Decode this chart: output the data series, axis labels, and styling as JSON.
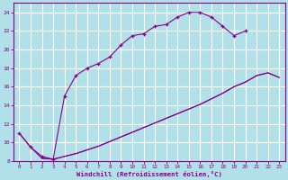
{
  "xlabel": "Windchill (Refroidissement éolien,°C)",
  "bg_color": "#b2e0e8",
  "grid_color": "#ffffff",
  "line_color": "#880088",
  "ylim": [
    8,
    25
  ],
  "xlim": [
    -0.5,
    23.5
  ],
  "yticks": [
    8,
    10,
    12,
    14,
    16,
    18,
    20,
    22,
    24
  ],
  "xticks": [
    0,
    1,
    2,
    3,
    4,
    5,
    6,
    7,
    8,
    9,
    10,
    11,
    12,
    13,
    14,
    15,
    16,
    17,
    18,
    19,
    20,
    21,
    22,
    23
  ],
  "curve1_x": [
    0,
    1,
    2,
    3,
    4,
    5,
    6,
    7,
    8,
    9,
    10,
    11,
    12,
    13,
    14,
    15,
    16,
    17,
    18,
    19,
    20
  ],
  "curve1_y": [
    11,
    9.5,
    8.5,
    8.2,
    15,
    17.2,
    18.0,
    18.5,
    19.2,
    20.5,
    21.5,
    21.7,
    22.5,
    22.7,
    23.5,
    24.0,
    24.0,
    23.5,
    22.5,
    21.5,
    22.0
  ],
  "curve2_x": [
    0,
    1,
    2,
    3,
    4,
    5,
    6,
    7,
    8,
    9,
    10,
    11,
    12,
    13,
    14,
    15,
    16,
    17,
    18,
    19,
    20,
    21,
    22,
    23
  ],
  "curve2_y": [
    11,
    9.5,
    8.3,
    8.2,
    8.5,
    8.8,
    9.2,
    9.6,
    10.1,
    10.6,
    11.1,
    11.6,
    12.1,
    12.6,
    13.1,
    13.6,
    14.1,
    14.7,
    15.3,
    16.0,
    16.5,
    17.2,
    17.5,
    17.0
  ],
  "curve3_x": [
    2,
    3,
    4,
    5,
    6,
    7,
    8,
    9,
    10,
    11,
    12,
    13,
    14,
    15,
    16,
    17,
    18,
    19,
    20,
    21,
    22,
    23
  ],
  "curve3_y": [
    8.3,
    8.2,
    8.5,
    8.8,
    9.2,
    9.6,
    10.1,
    10.6,
    11.1,
    11.6,
    12.1,
    12.6,
    13.1,
    13.6,
    14.1,
    14.7,
    15.3,
    16.0,
    16.5,
    17.2,
    17.5,
    17.0
  ]
}
